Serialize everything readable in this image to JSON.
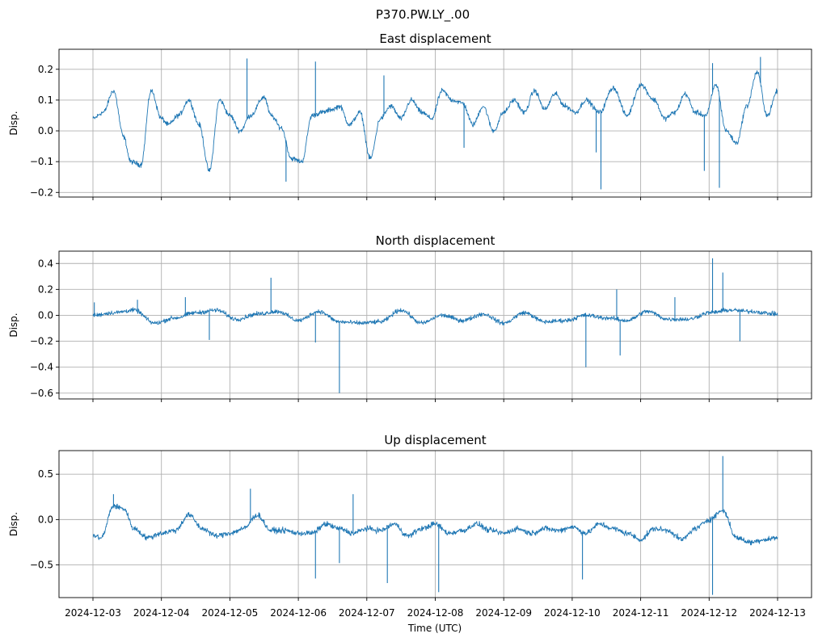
{
  "figure": {
    "suptitle": "P370.PW.LY_.00",
    "xlabel": "Time (UTC)"
  },
  "colors": {
    "series": "#1f77b4",
    "grid": "#b0b0b0",
    "axes": "#000000"
  },
  "chart_data": [
    {
      "type": "line",
      "title": "East displacement",
      "ylabel": "Disp.",
      "ylim": [
        -0.215,
        0.265
      ],
      "yticks": [
        -0.2,
        -0.1,
        0.0,
        0.1,
        0.2
      ],
      "ytick_labels": [
        "−0.2",
        "−0.1",
        "0.0",
        "0.1",
        "0.2"
      ],
      "grid": true,
      "x_keypoints": [
        0,
        0.15,
        0.3,
        0.45,
        0.55,
        0.7,
        0.85,
        1.0,
        1.1,
        1.25,
        1.4,
        1.55,
        1.7,
        1.85,
        2.0,
        2.15,
        2.3,
        2.5,
        2.6,
        2.75,
        2.9,
        3.05,
        3.2,
        3.35,
        3.5,
        3.6,
        3.75,
        3.9,
        4.05,
        4.2,
        4.35,
        4.5,
        4.65,
        4.8,
        4.95,
        5.1,
        5.25,
        5.4,
        5.55,
        5.7,
        5.85,
        6.0,
        6.15,
        6.3,
        6.45,
        6.6,
        6.75,
        6.9,
        7.05,
        7.2,
        7.4,
        7.6,
        7.8,
        8.0,
        8.2,
        8.35,
        8.5,
        8.65,
        8.8,
        8.95,
        9.1,
        9.25,
        9.4,
        9.55,
        9.7,
        9.85,
        10.0
      ],
      "y_keypoints": [
        0.04,
        0.06,
        0.13,
        -0.02,
        -0.1,
        -0.11,
        0.13,
        0.04,
        0.02,
        0.05,
        0.1,
        0.02,
        -0.13,
        0.1,
        0.05,
        0.0,
        0.05,
        0.11,
        0.05,
        0.01,
        -0.09,
        -0.1,
        0.05,
        0.06,
        0.07,
        0.08,
        0.02,
        0.06,
        -0.09,
        0.04,
        0.08,
        0.04,
        0.1,
        0.06,
        0.04,
        0.13,
        0.1,
        0.09,
        0.02,
        0.08,
        0.0,
        0.06,
        0.1,
        0.06,
        0.13,
        0.07,
        0.12,
        0.08,
        0.06,
        0.1,
        0.06,
        0.14,
        0.05,
        0.15,
        0.1,
        0.04,
        0.06,
        0.12,
        0.06,
        0.05,
        0.15,
        0.0,
        -0.04,
        0.08,
        0.19,
        0.05,
        0.13
      ],
      "noise": 0.012,
      "spikes": [
        {
          "x": 2.25,
          "y": 0.235
        },
        {
          "x": 2.82,
          "y": -0.165
        },
        {
          "x": 3.25,
          "y": 0.225
        },
        {
          "x": 4.25,
          "y": 0.18
        },
        {
          "x": 5.42,
          "y": -0.055
        },
        {
          "x": 7.42,
          "y": -0.19
        },
        {
          "x": 7.35,
          "y": -0.07
        },
        {
          "x": 8.93,
          "y": -0.13
        },
        {
          "x": 9.05,
          "y": 0.22
        },
        {
          "x": 9.15,
          "y": -0.185
        },
        {
          "x": 9.75,
          "y": 0.24
        }
      ]
    },
    {
      "type": "line",
      "title": "North displacement",
      "ylabel": "Disp.",
      "ylim": [
        -0.645,
        0.495
      ],
      "yticks": [
        -0.6,
        -0.4,
        -0.2,
        0.0,
        0.2,
        0.4
      ],
      "ytick_labels": [
        "−0.6",
        "−0.4",
        "−0.2",
        "0.0",
        "0.2",
        "0.4"
      ],
      "grid": true,
      "x_keypoints": [
        0,
        0.3,
        0.6,
        0.9,
        1.2,
        1.5,
        1.8,
        2.1,
        2.4,
        2.7,
        3.0,
        3.3,
        3.6,
        3.9,
        4.2,
        4.5,
        4.8,
        5.1,
        5.4,
        5.7,
        6.0,
        6.3,
        6.6,
        6.9,
        7.2,
        7.5,
        7.8,
        8.1,
        8.4,
        8.7,
        9.0,
        9.3,
        9.6,
        10.0
      ],
      "y_keypoints": [
        0.0,
        0.02,
        0.04,
        -0.06,
        -0.02,
        0.02,
        0.04,
        -0.03,
        0.01,
        0.03,
        -0.04,
        0.03,
        -0.05,
        -0.06,
        -0.05,
        0.04,
        -0.06,
        0.0,
        -0.04,
        0.01,
        -0.06,
        0.02,
        -0.05,
        -0.04,
        0.0,
        -0.02,
        -0.04,
        0.03,
        -0.03,
        -0.03,
        0.02,
        0.04,
        0.03,
        0.01
      ],
      "noise": 0.025,
      "spikes": [
        {
          "x": 0.02,
          "y": 0.1
        },
        {
          "x": 0.65,
          "y": 0.12
        },
        {
          "x": 1.35,
          "y": 0.14
        },
        {
          "x": 1.7,
          "y": -0.19
        },
        {
          "x": 2.6,
          "y": 0.29
        },
        {
          "x": 3.25,
          "y": -0.21
        },
        {
          "x": 3.6,
          "y": -0.6
        },
        {
          "x": 7.2,
          "y": -0.4
        },
        {
          "x": 7.65,
          "y": 0.2
        },
        {
          "x": 7.7,
          "y": -0.31
        },
        {
          "x": 9.05,
          "y": 0.44
        },
        {
          "x": 9.2,
          "y": 0.33
        },
        {
          "x": 9.45,
          "y": -0.2
        },
        {
          "x": 8.5,
          "y": 0.14
        }
      ]
    },
    {
      "type": "line",
      "title": "Up displacement",
      "ylabel": "Disp.",
      "ylim": [
        -0.86,
        0.76
      ],
      "yticks": [
        -0.5,
        0.0,
        0.5
      ],
      "ytick_labels": [
        "−0.5",
        "0.0",
        "0.5"
      ],
      "grid": true,
      "x_keypoints": [
        0,
        0.12,
        0.3,
        0.45,
        0.6,
        0.8,
        1.0,
        1.2,
        1.4,
        1.6,
        1.8,
        2.0,
        2.2,
        2.4,
        2.6,
        2.8,
        3.0,
        3.2,
        3.4,
        3.6,
        3.8,
        4.0,
        4.2,
        4.4,
        4.6,
        4.8,
        5.0,
        5.2,
        5.4,
        5.6,
        5.8,
        6.0,
        6.2,
        6.4,
        6.6,
        6.8,
        7.0,
        7.2,
        7.4,
        7.6,
        7.8,
        8.0,
        8.2,
        8.4,
        8.6,
        8.8,
        9.0,
        9.2,
        9.4,
        9.6,
        9.8,
        10.0
      ],
      "y_keypoints": [
        -0.18,
        -0.2,
        0.15,
        0.12,
        -0.1,
        -0.2,
        -0.15,
        -0.12,
        0.05,
        -0.1,
        -0.18,
        -0.15,
        -0.1,
        0.05,
        -0.12,
        -0.12,
        -0.15,
        -0.15,
        -0.05,
        -0.1,
        -0.15,
        -0.1,
        -0.12,
        -0.05,
        -0.18,
        -0.1,
        -0.05,
        -0.15,
        -0.12,
        -0.05,
        -0.12,
        -0.15,
        -0.1,
        -0.15,
        -0.1,
        -0.12,
        -0.08,
        -0.15,
        -0.05,
        -0.1,
        -0.15,
        -0.22,
        -0.1,
        -0.12,
        -0.22,
        -0.1,
        0.0,
        0.1,
        -0.2,
        -0.25,
        -0.22,
        -0.2
      ],
      "noise": 0.045,
      "spikes": [
        {
          "x": 2.3,
          "y": 0.34
        },
        {
          "x": 3.25,
          "y": -0.65
        },
        {
          "x": 3.6,
          "y": -0.48
        },
        {
          "x": 3.8,
          "y": 0.28
        },
        {
          "x": 4.3,
          "y": -0.7
        },
        {
          "x": 5.05,
          "y": -0.8
        },
        {
          "x": 7.15,
          "y": -0.66
        },
        {
          "x": 9.05,
          "y": -0.83
        },
        {
          "x": 9.2,
          "y": 0.7
        },
        {
          "x": 0.3,
          "y": 0.28
        }
      ]
    }
  ],
  "x_axis": {
    "start": "2024-12-03",
    "xlim": [
      "2024-12-02 11:00",
      "2024-12-13 05:30"
    ],
    "ticks": [
      "2024-12-03",
      "2024-12-04",
      "2024-12-05",
      "2024-12-06",
      "2024-12-07",
      "2024-12-08",
      "2024-12-09",
      "2024-12-10",
      "2024-12-11",
      "2024-12-12",
      "2024-12-13"
    ]
  }
}
